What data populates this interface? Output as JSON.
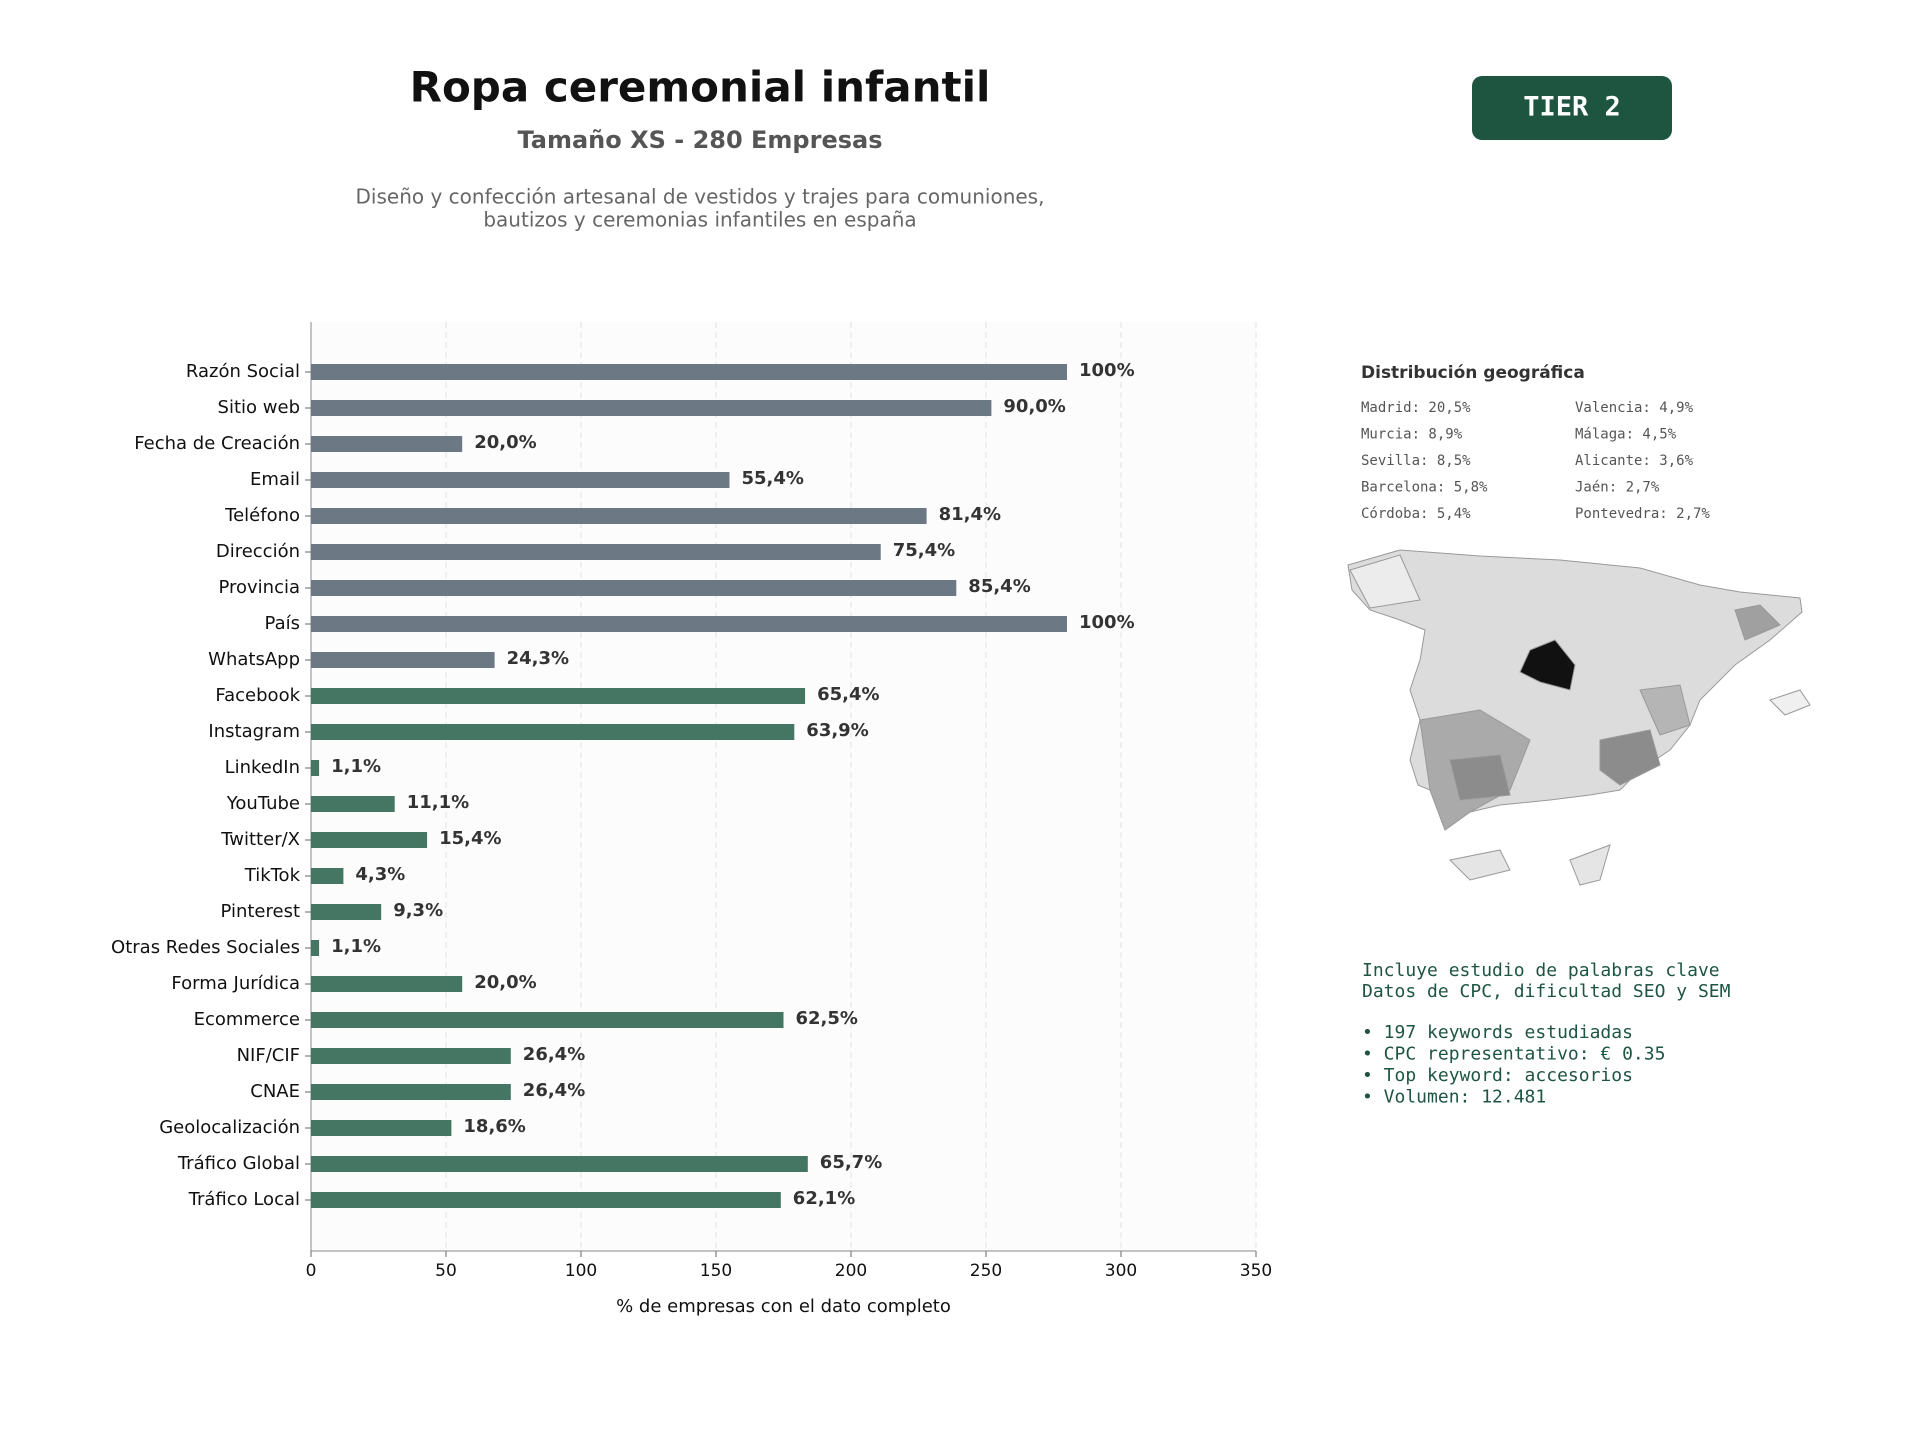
{
  "chart_data": {
    "type": "bar",
    "orientation": "horizontal",
    "title": "Ropa ceremonial infantil",
    "subtitle": "Tamaño XS - 280 Empresas",
    "description": [
      "Diseño y confección artesanal de vestidos y trajes para comuniones,",
      "bautizos y ceremonias infantiles en españa"
    ],
    "categories": [
      "Razón Social",
      "Sitio web",
      "Fecha de Creación",
      "Email",
      "Teléfono",
      "Dirección",
      "Provincia",
      "País",
      "WhatsApp",
      "Facebook",
      "Instagram",
      "LinkedIn",
      "YouTube",
      "Twitter/X",
      "TikTok",
      "Pinterest",
      "Otras Redes Sociales",
      "Forma Jurídica",
      "Ecommerce",
      "NIF/CIF",
      "CNAE",
      "Geolocalización",
      "Tráfico Global",
      "Tráfico Local"
    ],
    "values": [
      280,
      252,
      56,
      155,
      228,
      211,
      239,
      280,
      68,
      183,
      179,
      3,
      31,
      43,
      12,
      26,
      3,
      56,
      175,
      74,
      74,
      52,
      184,
      174
    ],
    "value_labels": [
      "100%",
      "90,0%",
      "20,0%",
      "55,4%",
      "81,4%",
      "75,4%",
      "85,4%",
      "100%",
      "24,3%",
      "65,4%",
      "63,9%",
      "1,1%",
      "11,1%",
      "15,4%",
      "4,3%",
      "9,3%",
      "1,1%",
      "20,0%",
      "62,5%",
      "26,4%",
      "26,4%",
      "18,6%",
      "65,7%",
      "62,1%"
    ],
    "colors": [
      "#6c7883",
      "#6c7883",
      "#6c7883",
      "#6c7883",
      "#6c7883",
      "#6c7883",
      "#6c7883",
      "#6c7883",
      "#6c7883",
      "#457563",
      "#457563",
      "#457563",
      "#457563",
      "#457563",
      "#457563",
      "#457563",
      "#457563",
      "#457563",
      "#457563",
      "#457563",
      "#457563",
      "#457563",
      "#457563",
      "#457563"
    ],
    "xlim": [
      0,
      350
    ],
    "xticks": [
      0,
      50,
      100,
      150,
      200,
      250,
      300,
      350
    ],
    "xlabel": "% de empresas con el dato completo",
    "grid": true
  },
  "badge": "TIER 2",
  "geo": {
    "title": "Distribución geográfica",
    "items": [
      "Madrid: 20,5%",
      "Valencia: 4,9%",
      "Murcia: 8,9%",
      "Málaga: 4,5%",
      "Sevilla: 8,5%",
      "Alicante: 3,6%",
      "Barcelona: 5,8%",
      "Jaén: 2,7%",
      "Córdoba: 5,4%",
      "Pontevedra: 2,7%"
    ]
  },
  "keywords": {
    "intro": [
      "Incluye estudio de palabras clave",
      "Datos de CPC, dificultad SEO y SEM"
    ],
    "bullets": [
      "• 197 keywords estudiadas",
      "• CPC representativo: € 0.35",
      "• Top keyword: accesorios",
      "• Volumen: 12.481"
    ]
  }
}
